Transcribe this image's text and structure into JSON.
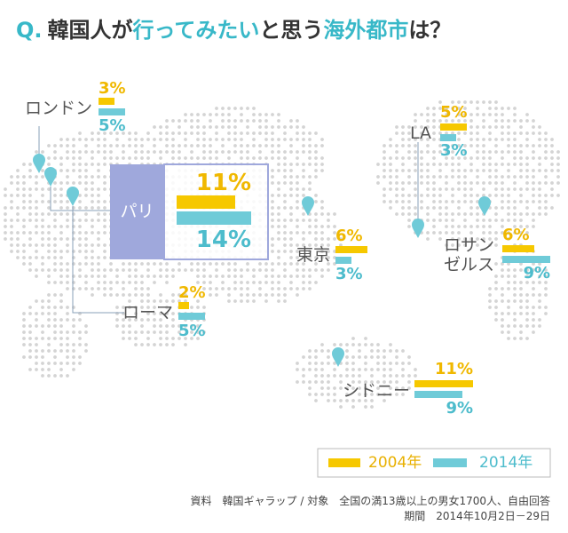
{
  "chart_data": {
    "type": "map-bar",
    "title": [
      "Q.",
      "韓国人が",
      "行ってみたい",
      "と思う",
      "海外都市",
      "は？"
    ],
    "categories": [
      "ロンドン",
      "パリ",
      "ローマ",
      "東京",
      "LA",
      "ロサンゼルス",
      "シドニー"
    ],
    "series": [
      {
        "name": "2004年",
        "color": "#f6c800",
        "values": [
          3,
          11,
          2,
          6,
          5,
          6,
          11
        ],
        "value_labels": [
          "3%",
          "11%",
          "2%",
          "6%",
          "5%",
          "6%",
          "11%"
        ]
      },
      {
        "name": "2014年",
        "color": "#6fcbd8",
        "values": [
          5,
          14,
          5,
          3,
          3,
          9,
          9
        ],
        "value_labels": [
          "5%",
          "14%",
          "5%",
          "3%",
          "3%",
          "9%",
          "9%"
        ]
      }
    ],
    "notes": [
      "資料　韓国ギャラップ / 対象　全国の満13歳以上の男女1700人、自由回答",
      "期間　2014年10月2日－29日"
    ]
  }
}
